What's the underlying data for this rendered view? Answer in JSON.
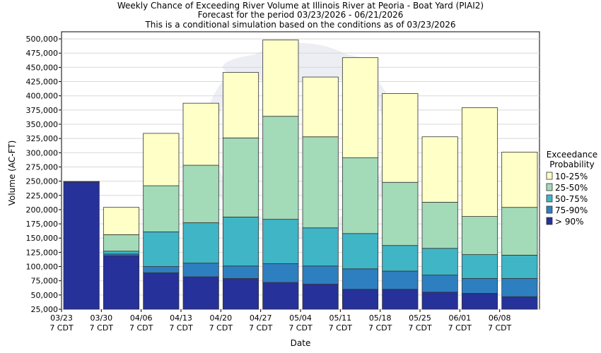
{
  "chart_data": {
    "type": "stacked-bar",
    "title_lines": [
      "Weekly Chance of Exceeding River Volume at Illinois River at Peoria - Boat Yard (PIAI2)",
      "Forecast for the period 03/23/2026 - 06/21/2026",
      "This is a conditional simulation based on the conditions as of 03/23/2026"
    ],
    "xlabel": "Date",
    "ylabel": "Volume (AC-FT)",
    "ylim": [
      25000,
      512500
    ],
    "yticks": [
      {
        "value": 25000,
        "label": "25,000"
      },
      {
        "value": 50000,
        "label": "50,000"
      },
      {
        "value": 75000,
        "label": "75,000"
      },
      {
        "value": 100000,
        "label": "100,000"
      },
      {
        "value": 125000,
        "label": "125,000"
      },
      {
        "value": 150000,
        "label": "150,000"
      },
      {
        "value": 175000,
        "label": "175,000"
      },
      {
        "value": 200000,
        "label": "200,000"
      },
      {
        "value": 225000,
        "label": "225,000"
      },
      {
        "value": 250000,
        "label": "250,000"
      },
      {
        "value": 275000,
        "label": "275,000"
      },
      {
        "value": 300000,
        "label": "300,000"
      },
      {
        "value": 325000,
        "label": "325,000"
      },
      {
        "value": 350000,
        "label": "350,000"
      },
      {
        "value": 375000,
        "label": "375,000"
      },
      {
        "value": 400000,
        "label": "400,000"
      },
      {
        "value": 425000,
        "label": "425,000"
      },
      {
        "value": 450000,
        "label": "450,000"
      },
      {
        "value": 475000,
        "label": "475,000"
      },
      {
        "value": 500000,
        "label": "500,000"
      }
    ],
    "categories": [
      {
        "date": "03/23",
        "tz": "7 CDT"
      },
      {
        "date": "03/30",
        "tz": "7 CDT"
      },
      {
        "date": "04/06",
        "tz": "7 CDT"
      },
      {
        "date": "04/13",
        "tz": "7 CDT"
      },
      {
        "date": "04/20",
        "tz": "7 CDT"
      },
      {
        "date": "04/27",
        "tz": "7 CDT"
      },
      {
        "date": "05/04",
        "tz": "7 CDT"
      },
      {
        "date": "05/11",
        "tz": "7 CDT"
      },
      {
        "date": "05/18",
        "tz": "7 CDT"
      },
      {
        "date": "05/25",
        "tz": "7 CDT"
      },
      {
        "date": "06/01",
        "tz": "7 CDT"
      },
      {
        "date": "06/08",
        "tz": "7 CDT"
      }
    ],
    "boundaries_note": "Each bar: cumulative tops from bottom to top for >90%, 75-90%, 50-75%, 25-50%, 10-25% bands",
    "bars": [
      [
        248500,
        248800,
        249000,
        249200,
        249500
      ],
      [
        119000,
        122000,
        127000,
        156000,
        204000
      ],
      [
        89000,
        100000,
        161000,
        242000,
        334000
      ],
      [
        82000,
        106000,
        177000,
        278000,
        387000
      ],
      [
        79000,
        101000,
        187000,
        326000,
        441000
      ],
      [
        72000,
        105000,
        183000,
        364000,
        498000
      ],
      [
        69000,
        101000,
        168000,
        328000,
        433000
      ],
      [
        60000,
        96000,
        158000,
        291000,
        467000
      ],
      [
        60000,
        92000,
        137000,
        248000,
        404000
      ],
      [
        55000,
        85000,
        132000,
        213000,
        328000
      ],
      [
        53000,
        79000,
        121000,
        188000,
        379000
      ],
      [
        47000,
        79000,
        120000,
        204000,
        301000
      ]
    ],
    "series": [
      {
        "name": "> 90%",
        "color": "#26319a"
      },
      {
        "name": "75-90%",
        "color": "#2e7fc0"
      },
      {
        "name": "50-75%",
        "color": "#40b5c6"
      },
      {
        "name": "25-50%",
        "color": "#a3dab8"
      },
      {
        "name": "10-25%",
        "color": "#ffffc8"
      }
    ],
    "legend": {
      "title_lines": [
        "Exceedance",
        "Probability"
      ],
      "items": [
        {
          "label": "10-25%",
          "color": "#ffffc8"
        },
        {
          "label": "25-50%",
          "color": "#a3dab8"
        },
        {
          "label": "50-75%",
          "color": "#40b5c6"
        },
        {
          "label": "75-90%",
          "color": "#2e7fc0"
        },
        {
          "label": "> 90%",
          "color": "#26319a"
        }
      ]
    },
    "grid": true
  }
}
